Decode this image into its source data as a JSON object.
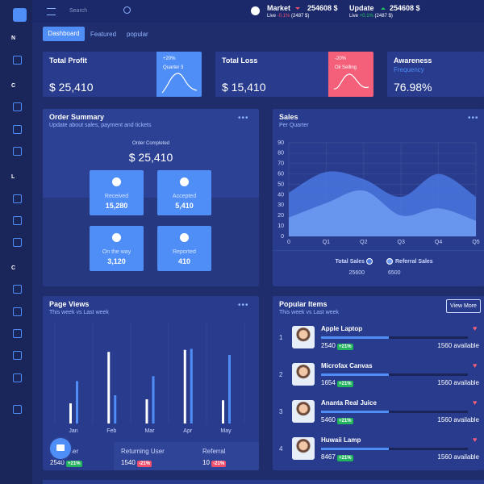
{
  "topbar": {
    "search_placeholder": "Search",
    "tickers": [
      {
        "name": "Market",
        "value": "254608 $",
        "live": "Live",
        "change": "-0.1%",
        "amount": "(2487 $)"
      },
      {
        "name": "Update",
        "value": "254608 $",
        "live": "Live",
        "change": "+0.1%",
        "amount": "(2487 $)"
      }
    ]
  },
  "sidebar": {
    "sections": [
      "N",
      "C",
      "L",
      "C"
    ]
  },
  "tabs": [
    "Dashboard",
    "Featured",
    "popular"
  ],
  "stats": [
    {
      "title": "Total Profit",
      "value": "$ 25,410",
      "badge": "+20%",
      "badge_caption": "Quarter 3"
    },
    {
      "title": "Total Loss",
      "value": "$ 15,410",
      "badge": "-20%",
      "badge_caption": "Oil Selling"
    },
    {
      "title": "Awareness",
      "subtitle": "Frequency",
      "value": "76.98%"
    }
  ],
  "order_summary": {
    "title": "Order Summary",
    "subtitle": "Update about sales, payment and tickets",
    "caption": "Order Completed",
    "total": "$ 25,410",
    "tiles": [
      {
        "label": "Received",
        "value": "15,280"
      },
      {
        "label": "Accepted",
        "value": "5,410"
      },
      {
        "label": "On the way",
        "value": "3,120"
      },
      {
        "label": "Reported",
        "value": "410"
      }
    ]
  },
  "chart_data": [
    {
      "type": "area",
      "title": "Sales",
      "subtitle": "Per Quarter",
      "x": [
        "0",
        "Q1",
        "Q2",
        "Q3",
        "Q4",
        "Q5"
      ],
      "series": [
        {
          "name": "Total Sales",
          "color": "#4a78e0",
          "values": [
            42,
            62,
            55,
            38,
            60,
            38
          ],
          "total": 25600
        },
        {
          "name": "Referral Sales",
          "color": "#6f9cf2",
          "values": [
            18,
            32,
            44,
            20,
            27,
            15
          ],
          "total": 6500
        }
      ],
      "ylim": [
        0,
        90
      ],
      "yticks": [
        0,
        10,
        20,
        30,
        40,
        50,
        60,
        70,
        80,
        90
      ],
      "grid": true
    },
    {
      "type": "bar",
      "title": "Page Views",
      "subtitle": "This week vs Last week",
      "categories": [
        "Jan",
        "Feb",
        "Mar",
        "Apr",
        "May"
      ],
      "series": [
        {
          "color": "#ffffff",
          "values": [
            20,
            71,
            24,
            73,
            23
          ]
        },
        {
          "color": "#4f8ef7",
          "values": [
            42,
            28,
            47,
            74,
            68
          ]
        }
      ],
      "ylim": [
        0,
        100
      ]
    }
  ],
  "page_views_footer": [
    {
      "label": "New User",
      "value": 2540,
      "change": "+21%"
    },
    {
      "label": "Returning User",
      "value": 1540,
      "change": "-21%"
    },
    {
      "label": "Referral",
      "value": 10,
      "change": "-21%"
    }
  ],
  "popular_items": {
    "title": "Popular Items",
    "subtitle": "This week vs Last week",
    "button": "View More",
    "items": [
      {
        "rank": 1,
        "name": "Apple Laptop",
        "value": 2540,
        "change": "+21%",
        "stock": "1560 available"
      },
      {
        "rank": 2,
        "name": "Microfax Canvas",
        "value": 1654,
        "change": "+21%",
        "stock": "1560 available"
      },
      {
        "rank": 3,
        "name": "Ananta Real Juice",
        "value": 5460,
        "change": "+21%",
        "stock": "1560 available"
      },
      {
        "rank": 4,
        "name": "Huwaii Lamp",
        "value": 8467,
        "change": "+21%",
        "stock": "1560 available"
      }
    ]
  }
}
